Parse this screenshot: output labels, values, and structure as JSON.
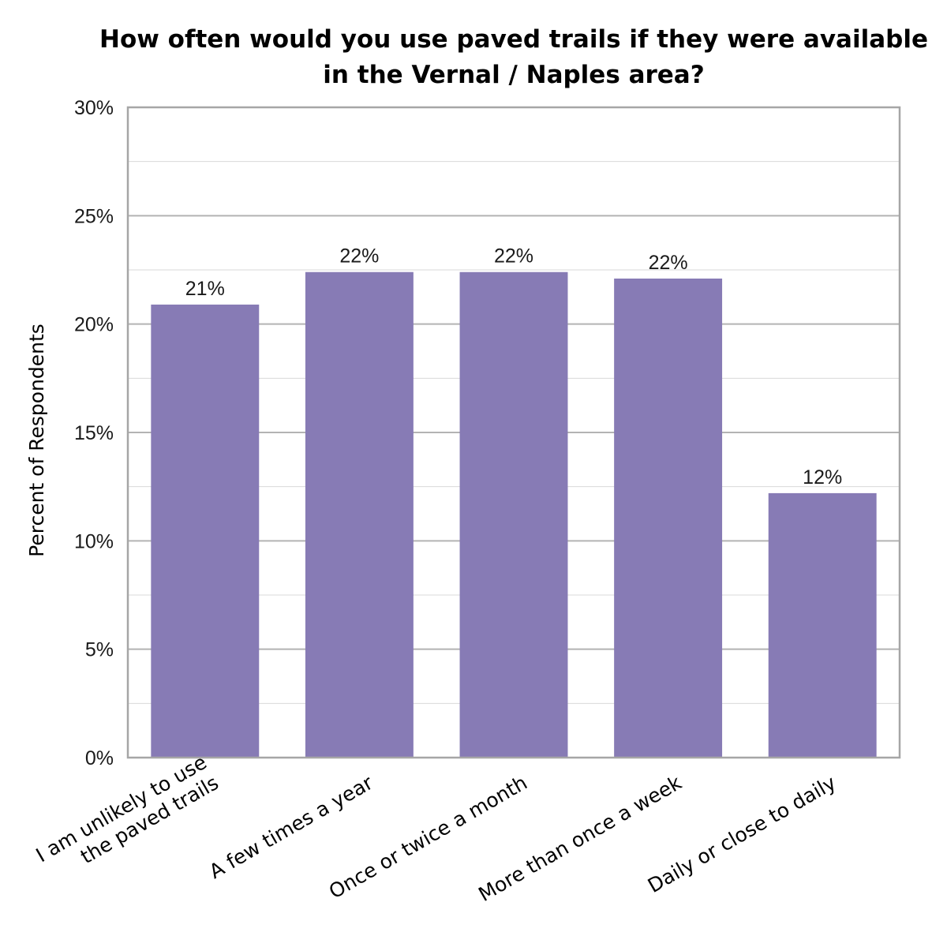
{
  "chart_data": {
    "type": "bar",
    "title_lines": [
      "How often would you use paved trails if they were available",
      "in the Vernal / Naples area?"
    ],
    "xlabel": "",
    "ylabel": "Percent of Respondents",
    "categories": [
      [
        "I am unlikely to use",
        "the paved trails"
      ],
      [
        "A few times a year"
      ],
      [
        "Once or twice a month"
      ],
      [
        "More than once a week"
      ],
      [
        "Daily or close to daily"
      ]
    ],
    "values": [
      20.9,
      22.4,
      22.4,
      22.1,
      12.2
    ],
    "data_labels": [
      "21%",
      "22%",
      "22%",
      "22%",
      "12%"
    ],
    "ylim": [
      0,
      30
    ],
    "yticks": [
      0,
      5,
      10,
      15,
      20,
      25,
      30
    ],
    "ytick_labels": [
      "0%",
      "5%",
      "10%",
      "15%",
      "20%",
      "25%",
      "30%"
    ],
    "minor_gridlines_every": 2.5,
    "grid": true,
    "legend": "none",
    "colors": {
      "bar": "#877bb5",
      "major_grid": "#b3b3b3",
      "minor_grid": "#d9d9d9",
      "plot_border": "#a6a6a6"
    }
  }
}
